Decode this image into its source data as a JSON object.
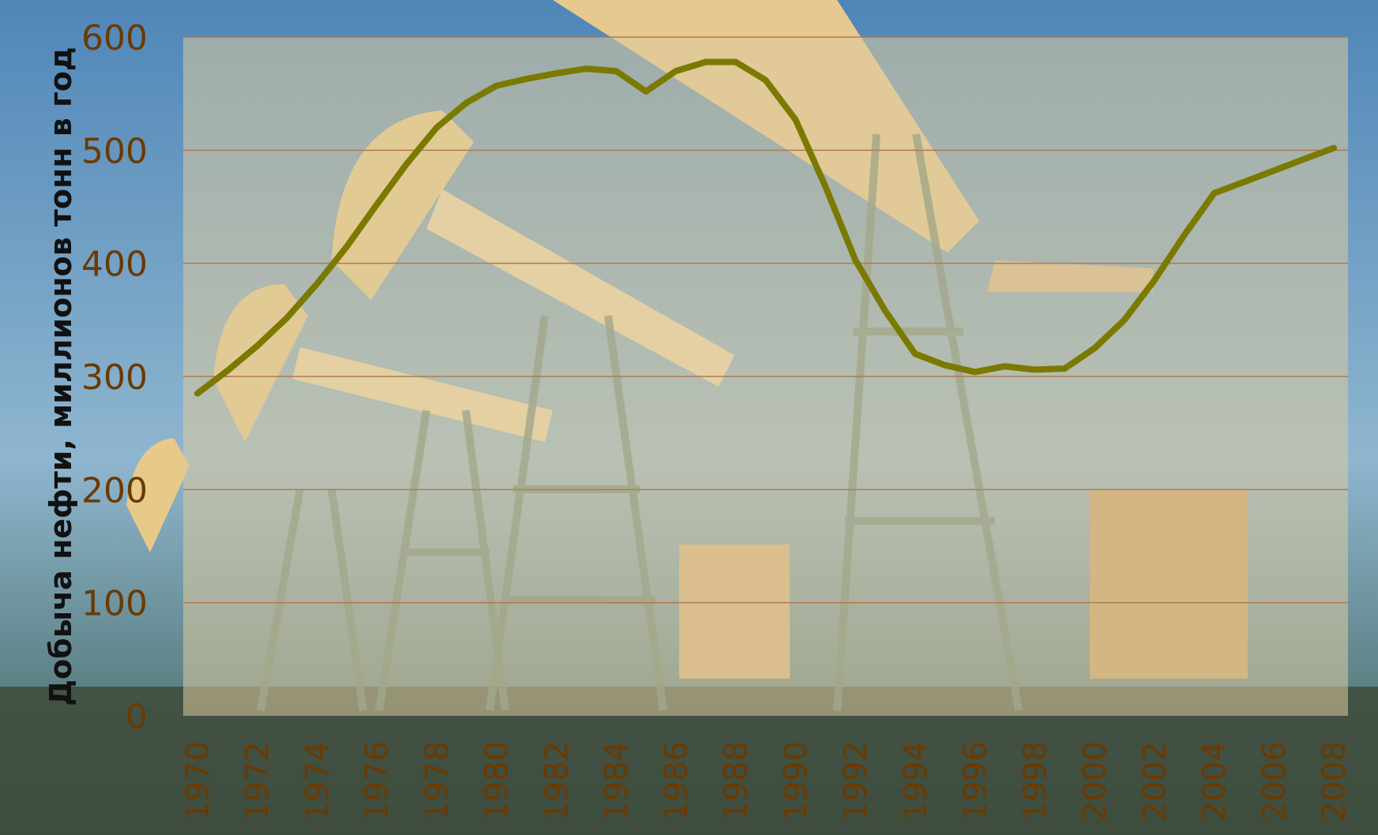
{
  "chart_data": {
    "type": "line",
    "title": "",
    "xlabel": "",
    "ylabel": "Добыча нефти, миллионов тонн в год",
    "ylim": [
      0,
      600
    ],
    "yticks": [
      0,
      100,
      200,
      300,
      400,
      500,
      600
    ],
    "grid": true,
    "colors": {
      "line": "#7a7a00",
      "tick_text": "#6b3a00",
      "grid": "#b07a50"
    },
    "x": [
      1970,
      1971,
      1972,
      1973,
      1974,
      1975,
      1976,
      1977,
      1978,
      1979,
      1980,
      1981,
      1982,
      1983,
      1984,
      1985,
      1986,
      1987,
      1988,
      1989,
      1990,
      1991,
      1992,
      1993,
      1994,
      1995,
      1996,
      1997,
      1998,
      1999,
      2000,
      2001,
      2002,
      2003,
      2004,
      2005,
      2006,
      2007,
      2008
    ],
    "xtick_labels": [
      "1970",
      "1972",
      "1974",
      "1976",
      "1978",
      "1980",
      "1982",
      "1984",
      "1986",
      "1988",
      "1990",
      "1992",
      "1994",
      "1996",
      "1998",
      "2000",
      "2002",
      "2004",
      "2006",
      "2008"
    ],
    "series": [
      {
        "name": "",
        "values": [
          285,
          305,
          327,
          352,
          382,
          415,
          452,
          488,
          520,
          542,
          557,
          563,
          568,
          572,
          570,
          552,
          570,
          578,
          578,
          562,
          527,
          468,
          403,
          358,
          320,
          310,
          304,
          309,
          306,
          307,
          325,
          350,
          385,
          425,
          462,
          472,
          482,
          492,
          502
        ]
      }
    ]
  }
}
